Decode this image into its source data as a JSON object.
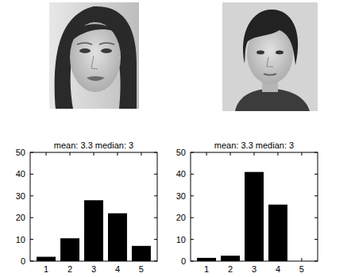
{
  "chart_data": [
    {
      "type": "bar",
      "title": "mean: 3.3 median: 3",
      "x": [
        1,
        2,
        3,
        4,
        5
      ],
      "values": [
        2,
        10.5,
        28,
        22,
        7
      ],
      "color": "#000000",
      "xlim": [
        0.33,
        5.67
      ],
      "xticks": [
        1,
        2,
        3,
        4,
        5
      ],
      "ylim": [
        0,
        50
      ],
      "yticks": [
        0,
        10,
        20,
        30,
        40,
        50
      ]
    },
    {
      "type": "bar",
      "title": "mean: 3.3 median: 3",
      "x": [
        1,
        2,
        3,
        4,
        5
      ],
      "values": [
        1.5,
        2.5,
        41,
        26,
        0
      ],
      "color": "#000000",
      "xlim": [
        0.33,
        5.67
      ],
      "xticks": [
        1,
        2,
        3,
        4,
        5
      ],
      "ylim": [
        0,
        50
      ],
      "yticks": [
        0,
        10,
        20,
        30,
        40,
        50
      ]
    }
  ]
}
